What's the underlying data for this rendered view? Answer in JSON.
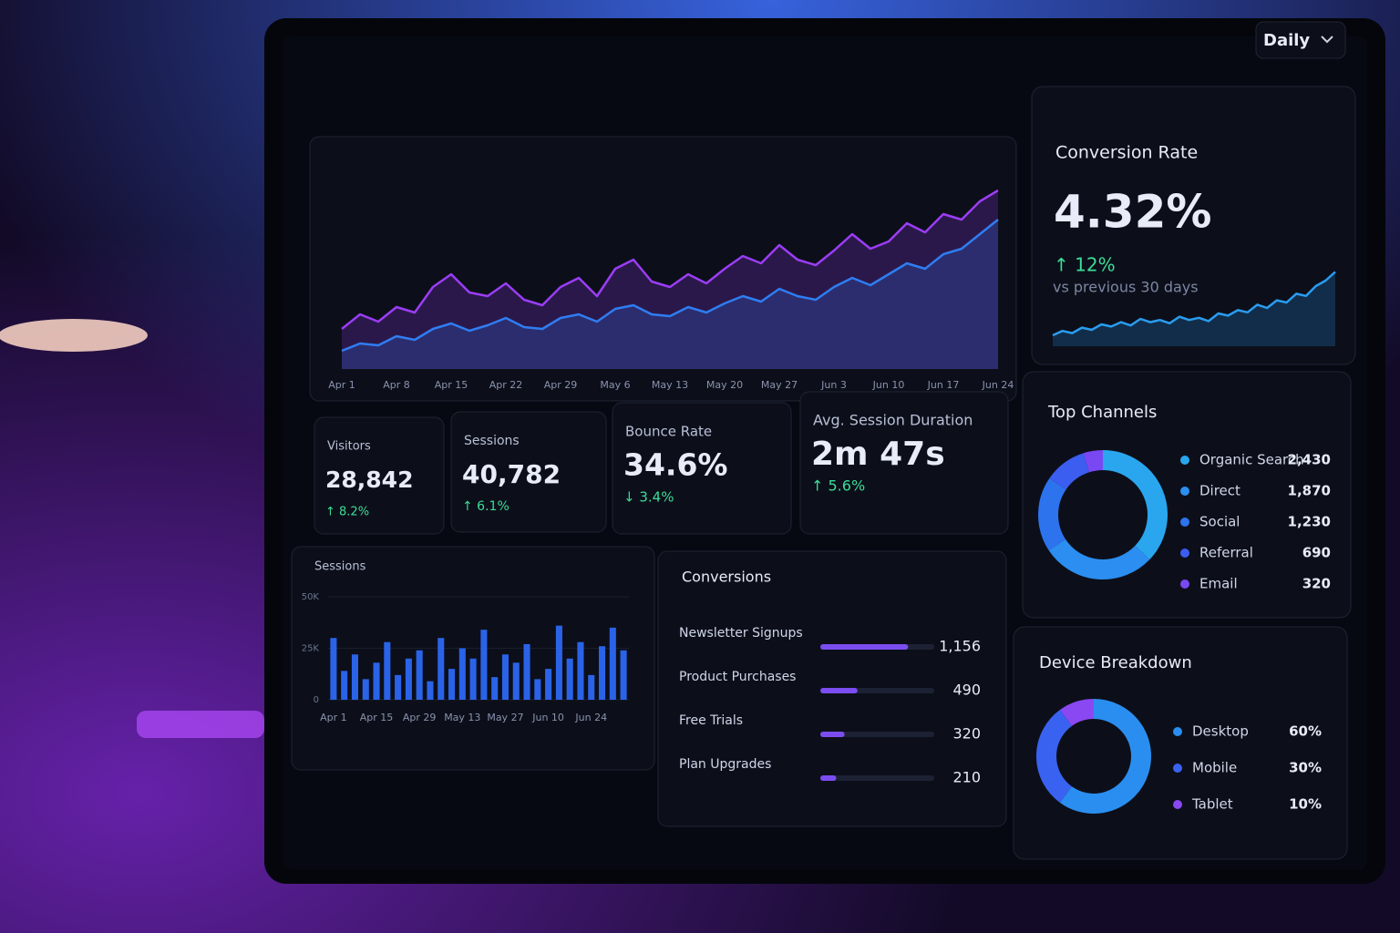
{
  "dashboard": {
    "period": "Daily",
    "conversion_rate": {
      "title": "Conversion Rate",
      "value": "4.32%",
      "change": "↑ 12%",
      "note": "vs previous 30 days"
    },
    "kpis": [
      {
        "label": "Visitors",
        "value": "28,842",
        "change": "↑ 8.2%"
      },
      {
        "label": "Sessions",
        "value": "40,782",
        "change": "↑ 6.1%"
      },
      {
        "label": "Bounce Rate",
        "value": "34.6%",
        "change": "↓ 3.4%"
      },
      {
        "label": "Avg. Session Duration",
        "value": "2m 47s",
        "change": "↑ 5.6%"
      }
    ]
  },
  "chart_data": [
    {
      "type": "line",
      "categories": [
        "Apr 1",
        null,
        null,
        "Apr 8",
        null,
        null,
        "Apr 15",
        null,
        null,
        "Apr 22",
        null,
        null,
        "Apr 29",
        null,
        null,
        "May 6",
        null,
        null,
        "May 13",
        null,
        null,
        "May 20",
        null,
        null,
        "May 27",
        null,
        null,
        "Jun 3",
        null,
        null,
        "Jun 10",
        null,
        null,
        "Jun 17",
        null,
        null,
        "Jun 24"
      ],
      "ylim": [
        0,
        105
      ],
      "series": [
        {
          "color": "#9b3df5",
          "values": [
            22,
            30,
            26,
            34,
            31,
            45,
            52,
            42,
            40,
            47,
            38,
            35,
            45,
            50,
            40,
            55,
            60,
            48,
            45,
            52,
            47,
            55,
            62,
            58,
            68,
            60,
            57,
            65,
            74,
            66,
            70,
            80,
            75,
            85,
            82,
            92,
            98
          ]
        },
        {
          "color": "#2f7df2",
          "values": [
            10,
            14,
            13,
            18,
            16,
            22,
            25,
            21,
            24,
            28,
            23,
            22,
            28,
            30,
            26,
            33,
            35,
            30,
            29,
            34,
            31,
            36,
            40,
            37,
            44,
            40,
            38,
            45,
            50,
            46,
            52,
            58,
            55,
            63,
            66,
            74,
            82
          ]
        }
      ]
    },
    {
      "type": "line",
      "ylim": [
        0,
        75
      ],
      "series": [
        {
          "color": "#2a9cf0",
          "values": [
            10,
            14,
            12,
            17,
            15,
            20,
            18,
            22,
            19,
            25,
            22,
            24,
            21,
            27,
            24,
            26,
            23,
            30,
            28,
            33,
            31,
            38,
            35,
            42,
            40,
            48,
            46,
            55,
            60,
            68
          ]
        }
      ]
    },
    {
      "type": "bar",
      "title": "Sessions",
      "color": "#2a63e8",
      "categories": [
        "Apr 1",
        null,
        null,
        null,
        "Apr 15",
        null,
        null,
        null,
        "Apr 29",
        null,
        null,
        null,
        "May 13",
        null,
        null,
        null,
        "May 27",
        null,
        null,
        null,
        "Jun 10",
        null,
        null,
        null,
        "Jun 24",
        null,
        null,
        null
      ],
      "values": [
        30000,
        14000,
        22000,
        10000,
        18000,
        28000,
        12000,
        20000,
        24000,
        9000,
        30000,
        15000,
        25000,
        20000,
        34000,
        11000,
        22000,
        18000,
        27000,
        10000,
        15000,
        36000,
        20000,
        28000,
        12000,
        26000,
        35000,
        24000
      ],
      "ylim": [
        0,
        50000
      ],
      "yticks": [
        0,
        {
          "value": 25000,
          "label": "25K"
        },
        {
          "value": 50000,
          "label": "50K"
        }
      ]
    },
    {
      "type": "hbar",
      "title": "Conversions",
      "color": "#7b4df0",
      "categories": [
        "Newsletter Signups",
        "Product Purchases",
        "Free Trials",
        "Plan Upgrades"
      ],
      "values": [
        1156,
        490,
        320,
        210
      ],
      "value_labels": [
        "1,156",
        "490",
        "320",
        "210"
      ],
      "xlim": [
        0,
        1500
      ]
    },
    {
      "type": "donut",
      "title": "Top Channels",
      "categories": [
        "Organic Search",
        "Direct",
        "Social",
        "Referral",
        "Email"
      ],
      "values": [
        2430,
        1870,
        1230,
        690,
        320
      ],
      "value_labels": [
        "2,430",
        "1,870",
        "1,230",
        "690",
        "320"
      ],
      "colors": [
        "#2aa6ee",
        "#2b8ef0",
        "#2d73ee",
        "#3b5df0",
        "#7a48f2"
      ]
    },
    {
      "type": "donut",
      "title": "Device Breakdown",
      "categories": [
        "Desktop",
        "Mobile",
        "Tablet"
      ],
      "values": [
        60,
        30,
        10
      ],
      "value_labels": [
        "60%",
        "30%",
        "10%"
      ],
      "colors": [
        "#2a8ef0",
        "#3a62f0",
        "#8a48f2"
      ]
    }
  ]
}
